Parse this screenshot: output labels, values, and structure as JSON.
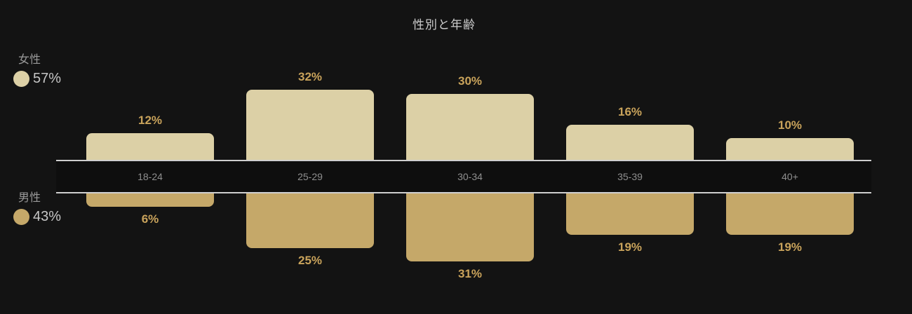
{
  "title": "性別と年齢",
  "legend": {
    "female": {
      "label": "女性",
      "value": "57%"
    },
    "male": {
      "label": "男性",
      "value": "43%"
    }
  },
  "colors": {
    "background": "#131313",
    "band_background": "#0e0e0e",
    "axis_line": "#cfcfcf",
    "female_bar": "#dcd0a6",
    "male_bar": "#c5a869",
    "value_label": "#c9a35b",
    "category_label": "#8f8f8f",
    "title_text": "#cdcdcd",
    "legend_name_text": "#9a9a9a",
    "legend_value_text": "#c6c6c6"
  },
  "chart_data": {
    "type": "bar",
    "subtype": "diverging-vertical",
    "title": "性別と年齢",
    "categories": [
      "18-24",
      "25-29",
      "30-34",
      "35-39",
      "40+"
    ],
    "series": [
      {
        "name": "女性",
        "total_share": "57%",
        "direction": "up",
        "color": "#dcd0a6",
        "values": [
          12,
          32,
          30,
          16,
          10
        ]
      },
      {
        "name": "男性",
        "total_share": "43%",
        "direction": "down",
        "color": "#c5a869",
        "values": [
          6,
          25,
          31,
          19,
          19
        ]
      }
    ],
    "value_suffix": "%",
    "value_range_per_side": [
      0,
      32
    ],
    "grid": false,
    "legend_position": "left",
    "axis_labels_position": "center-band"
  }
}
